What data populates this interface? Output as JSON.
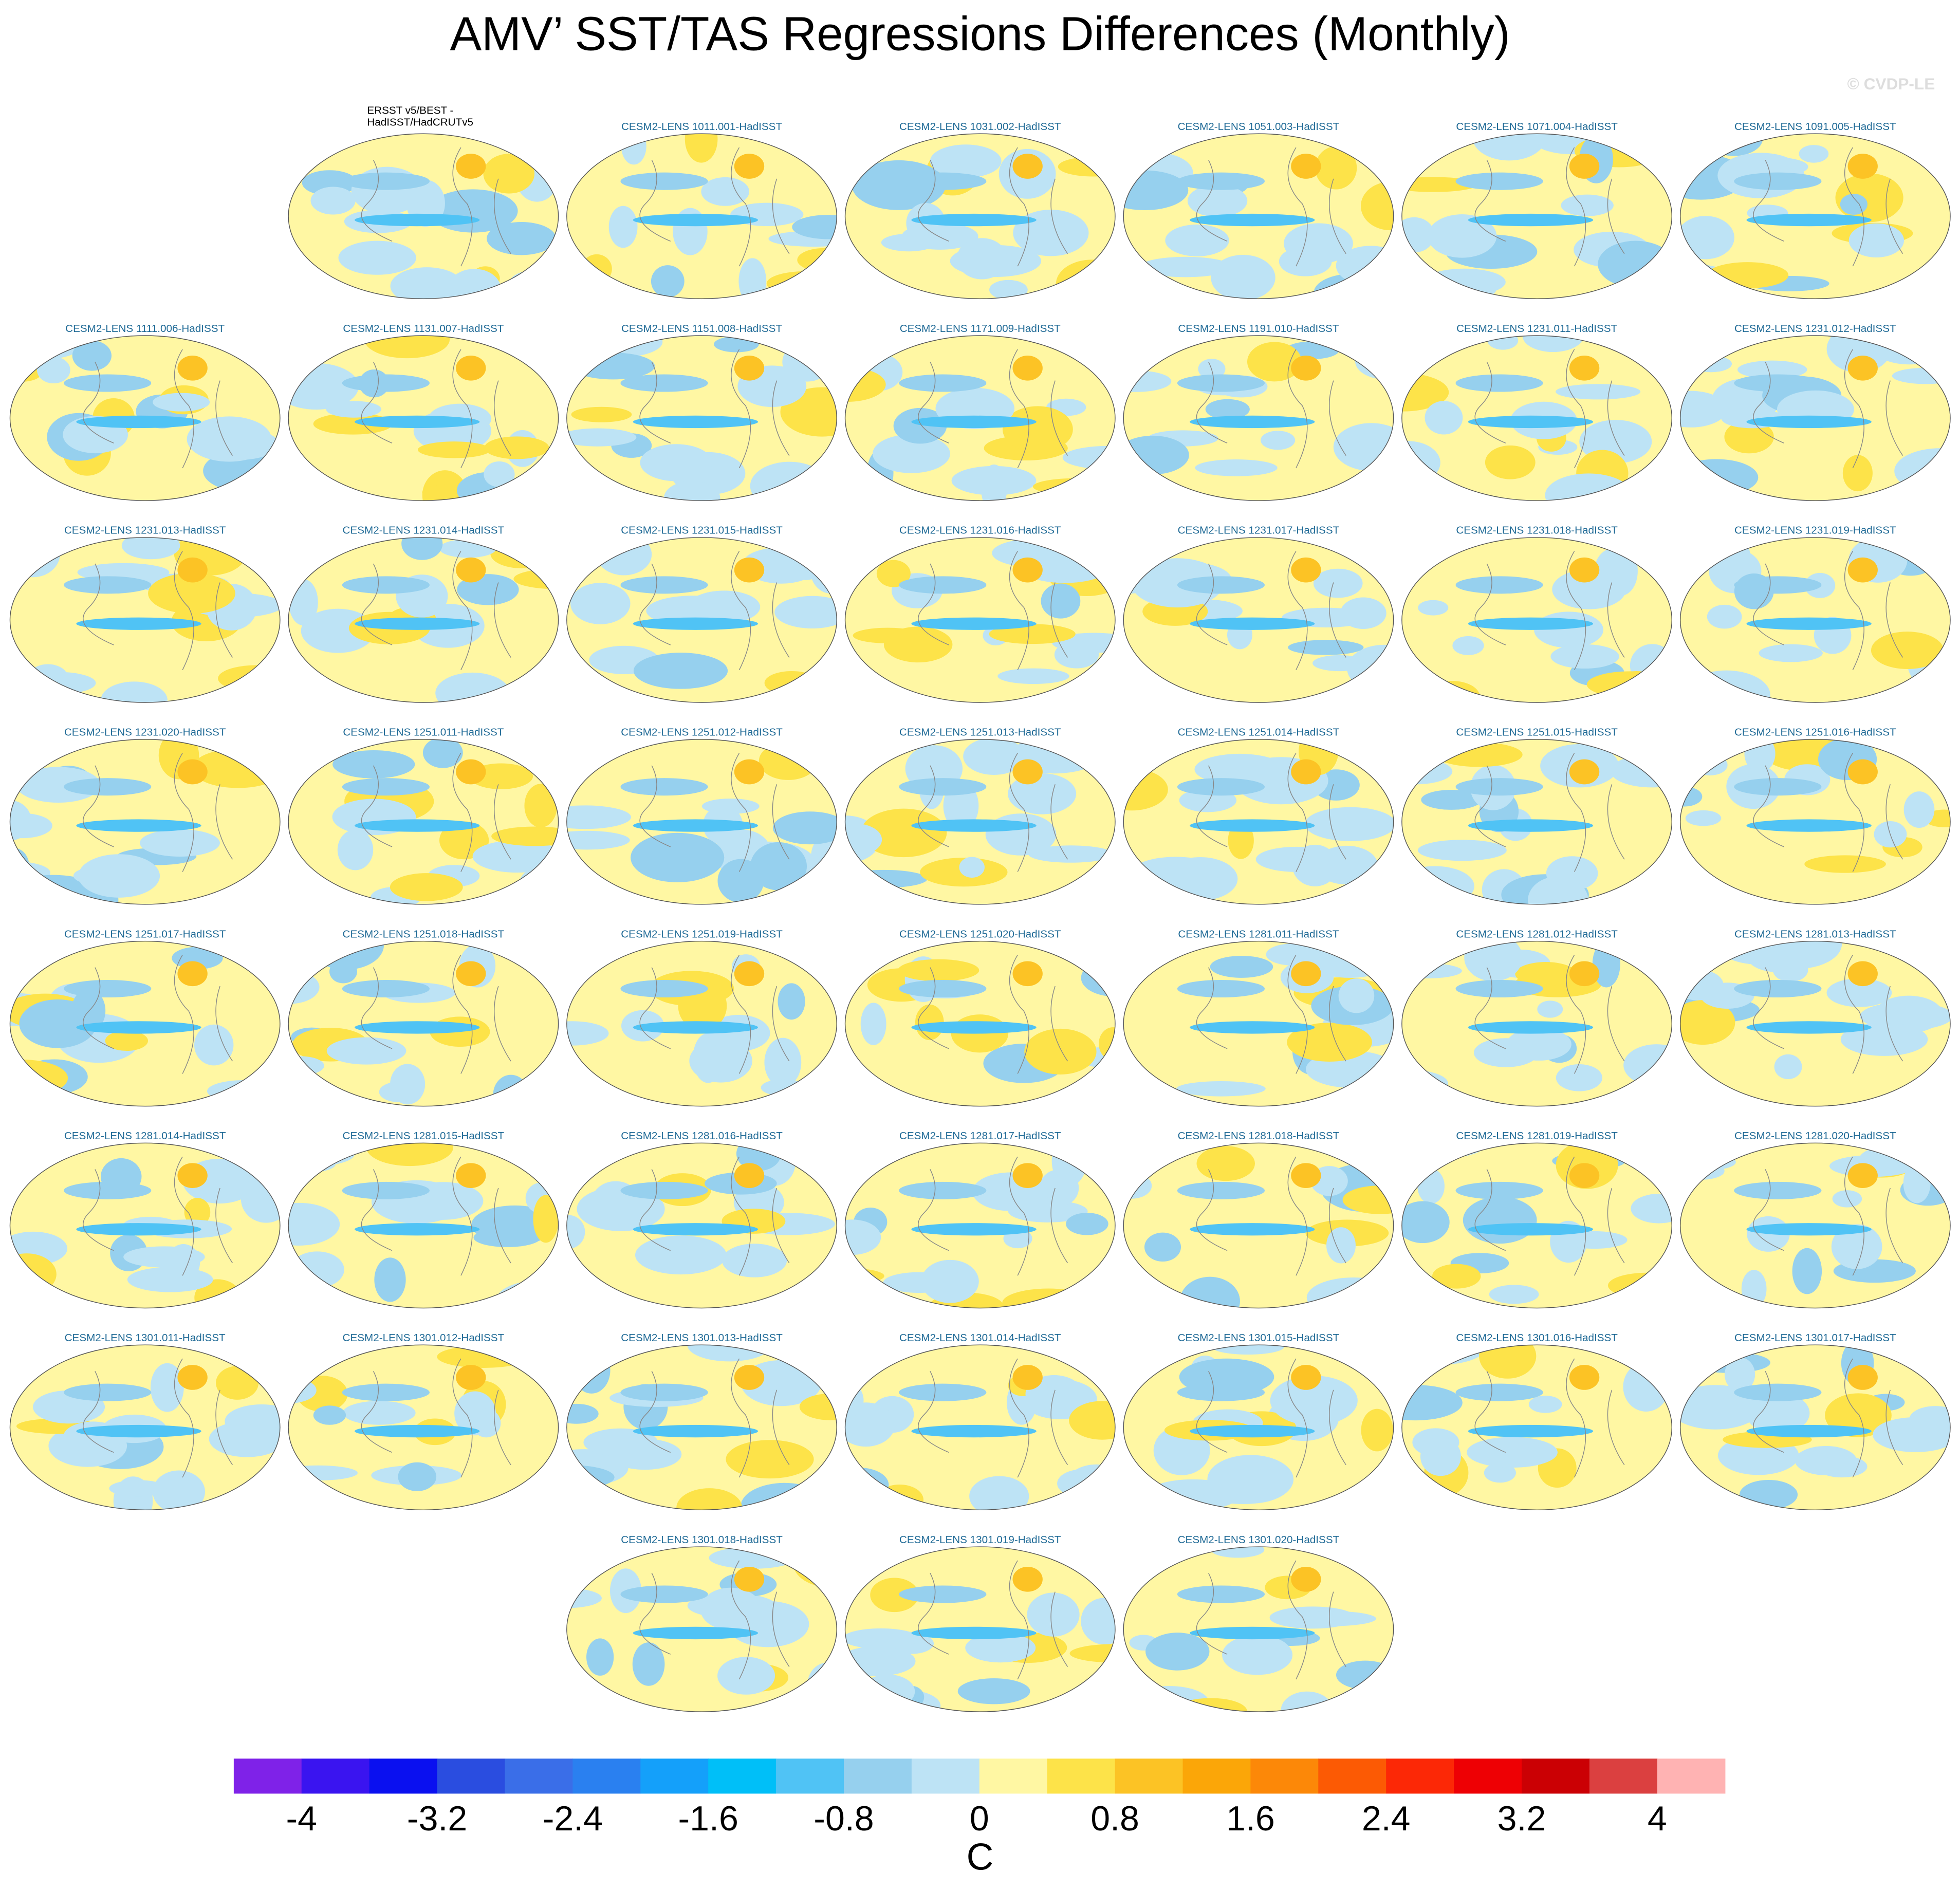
{
  "title": "AMV’ SST/TAS Regressions Differences (Monthly)",
  "credit": "© CVDP-LE",
  "panels": [
    {
      "title": [
        "ERSST v5/BEST -",
        "HadISST/HadCRUTv5"
      ]
    },
    {
      "title": "CESM2-LENS 1011.001-HadISST"
    },
    {
      "title": "CESM2-LENS 1031.002-HadISST"
    },
    {
      "title": "CESM2-LENS 1051.003-HadISST"
    },
    {
      "title": "CESM2-LENS 1071.004-HadISST"
    },
    {
      "title": "CESM2-LENS 1091.005-HadISST"
    },
    {
      "title": "CESM2-LENS 1111.006-HadISST"
    },
    {
      "title": "CESM2-LENS 1131.007-HadISST"
    },
    {
      "title": "CESM2-LENS 1151.008-HadISST"
    },
    {
      "title": "CESM2-LENS 1171.009-HadISST"
    },
    {
      "title": "CESM2-LENS 1191.010-HadISST"
    },
    {
      "title": "CESM2-LENS 1231.011-HadISST"
    },
    {
      "title": "CESM2-LENS 1231.012-HadISST"
    },
    {
      "title": "CESM2-LENS 1231.013-HadISST"
    },
    {
      "title": "CESM2-LENS 1231.014-HadISST"
    },
    {
      "title": "CESM2-LENS 1231.015-HadISST"
    },
    {
      "title": "CESM2-LENS 1231.016-HadISST"
    },
    {
      "title": "CESM2-LENS 1231.017-HadISST"
    },
    {
      "title": "CESM2-LENS 1231.018-HadISST"
    },
    {
      "title": "CESM2-LENS 1231.019-HadISST"
    },
    {
      "title": "CESM2-LENS 1231.020-HadISST"
    },
    {
      "title": "CESM2-LENS 1251.011-HadISST"
    },
    {
      "title": "CESM2-LENS 1251.012-HadISST"
    },
    {
      "title": "CESM2-LENS 1251.013-HadISST"
    },
    {
      "title": "CESM2-LENS 1251.014-HadISST"
    },
    {
      "title": "CESM2-LENS 1251.015-HadISST"
    },
    {
      "title": "CESM2-LENS 1251.016-HadISST"
    },
    {
      "title": "CESM2-LENS 1251.017-HadISST"
    },
    {
      "title": "CESM2-LENS 1251.018-HadISST"
    },
    {
      "title": "CESM2-LENS 1251.019-HadISST"
    },
    {
      "title": "CESM2-LENS 1251.020-HadISST"
    },
    {
      "title": "CESM2-LENS 1281.011-HadISST"
    },
    {
      "title": "CESM2-LENS 1281.012-HadISST"
    },
    {
      "title": "CESM2-LENS 1281.013-HadISST"
    },
    {
      "title": "CESM2-LENS 1281.014-HadISST"
    },
    {
      "title": "CESM2-LENS 1281.015-HadISST"
    },
    {
      "title": "CESM2-LENS 1281.016-HadISST"
    },
    {
      "title": "CESM2-LENS 1281.017-HadISST"
    },
    {
      "title": "CESM2-LENS 1281.018-HadISST"
    },
    {
      "title": "CESM2-LENS 1281.019-HadISST"
    },
    {
      "title": "CESM2-LENS 1281.020-HadISST"
    },
    {
      "title": "CESM2-LENS 1301.011-HadISST"
    },
    {
      "title": "CESM2-LENS 1301.012-HadISST"
    },
    {
      "title": "CESM2-LENS 1301.013-HadISST"
    },
    {
      "title": "CESM2-LENS 1301.014-HadISST"
    },
    {
      "title": "CESM2-LENS 1301.015-HadISST"
    },
    {
      "title": "CESM2-LENS 1301.016-HadISST"
    },
    {
      "title": "CESM2-LENS 1301.017-HadISST"
    },
    {
      "title": "CESM2-LENS 1301.018-HadISST"
    },
    {
      "title": "CESM2-LENS 1301.019-HadISST"
    },
    {
      "title": "CESM2-LENS 1301.020-HadISST"
    }
  ],
  "colorbar": {
    "colors": [
      "#7f22e8",
      "#3a14f0",
      "#0a10f0",
      "#2a4de0",
      "#3a6ee8",
      "#2a80f0",
      "#14a0fa",
      "#00bff8",
      "#50c3f5",
      "#96d0ee",
      "#bde3f5",
      "#fff7a3",
      "#fde349",
      "#fcc325",
      "#fba608",
      "#fc8808",
      "#fc5a04",
      "#fc2806",
      "#ee0004",
      "#cb0004",
      "#db4040",
      "#ffb3b3"
    ],
    "ticks": [
      -4,
      -3.2,
      -2.4,
      -1.6,
      -0.8,
      0,
      0.8,
      1.6,
      2.4,
      3.2,
      4
    ],
    "unit": "C"
  }
}
